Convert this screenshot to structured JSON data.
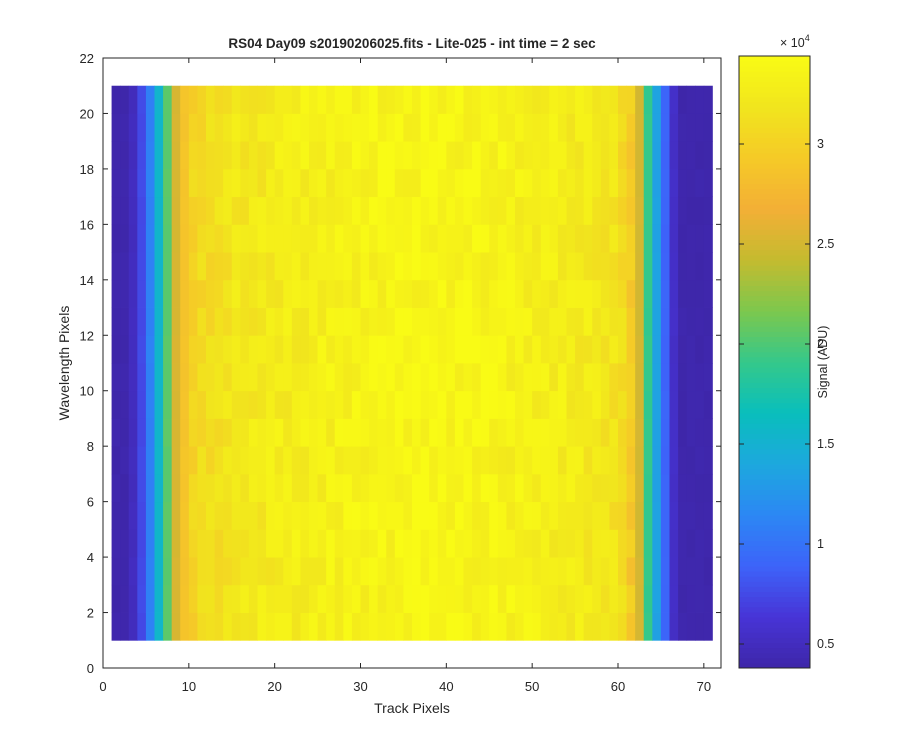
{
  "chart_data": {
    "type": "heatmap",
    "title": "RS04 Day09  s20190206025.fits - Lite-025 - int time = 2 sec",
    "xlabel": "Track Pixels",
    "ylabel": "Wavelength Pixels",
    "xlim": [
      0,
      72
    ],
    "ylim": [
      0,
      22
    ],
    "x_ticks": [
      "0",
      "10",
      "20",
      "30",
      "40",
      "50",
      "60",
      "70"
    ],
    "y_ticks": [
      "0",
      "2",
      "4",
      "6",
      "8",
      "10",
      "12",
      "14",
      "16",
      "18",
      "20",
      "22"
    ],
    "grid": false,
    "x_range": [
      1,
      71
    ],
    "y_range": [
      1,
      21
    ],
    "profile_x": [
      1,
      2,
      3,
      4,
      5,
      6,
      7,
      8,
      9,
      10,
      11,
      12,
      13,
      14,
      15,
      16,
      18,
      20,
      25,
      30,
      35,
      38,
      40,
      45,
      50,
      55,
      58,
      60,
      61,
      62,
      63,
      64,
      65,
      66,
      67,
      68,
      69,
      70,
      71
    ],
    "profile_values": [
      4000,
      4000,
      4000,
      6000,
      9000,
      13000,
      18000,
      23000,
      27500,
      30000,
      30500,
      31000,
      31200,
      31500,
      31800,
      32000,
      32300,
      32600,
      33000,
      33400,
      33700,
      33900,
      33800,
      33500,
      33100,
      32600,
      32200,
      31500,
      30500,
      28000,
      22000,
      16000,
      11000,
      7000,
      4000,
      4000,
      4000,
      4000,
      4000
    ],
    "colorbar": {
      "label": "Signal (ADU)",
      "exponent": "× 10",
      "exponent_power": "4",
      "min": 3800,
      "max": 34400,
      "ticks": [
        {
          "value": 5000,
          "label": "0.5"
        },
        {
          "value": 10000,
          "label": "1"
        },
        {
          "value": 15000,
          "label": "1.5"
        },
        {
          "value": 20000,
          "label": "2"
        },
        {
          "value": 25000,
          "label": "2.5"
        },
        {
          "value": 30000,
          "label": "3"
        }
      ],
      "colormap": [
        "#3e26a8",
        "#4734d6",
        "#3d63f9",
        "#2c87f4",
        "#1da8de",
        "#09bebc",
        "#34c88b",
        "#7cc84e",
        "#c4bb2f",
        "#f3af36",
        "#f5ca27",
        "#f1e51d",
        "#f9fb15"
      ]
    }
  }
}
